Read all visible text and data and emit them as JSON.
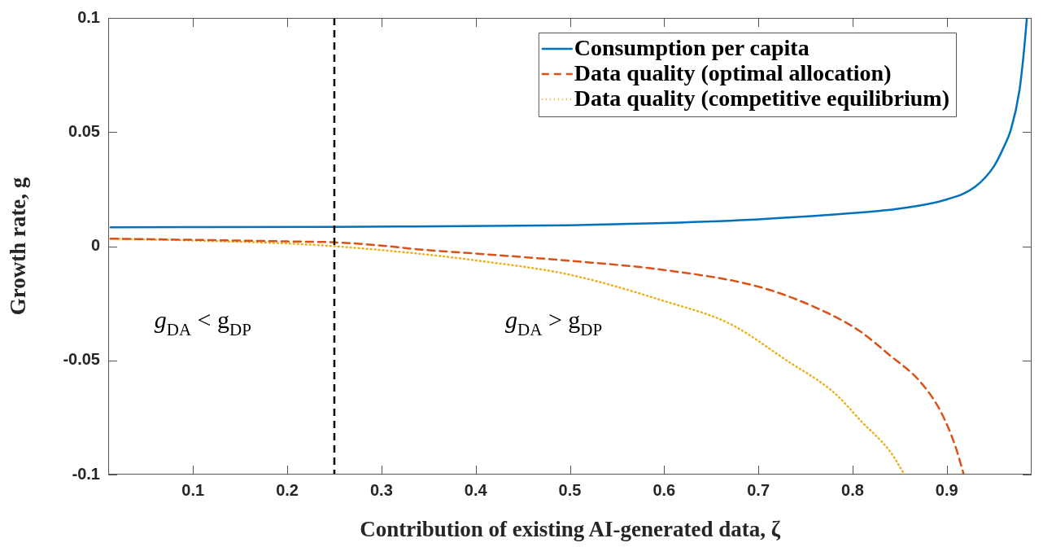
{
  "chart_data": {
    "type": "line",
    "xlabel": "Contribution of existing AI-generated data, ζ",
    "ylabel": "Growth rate, g",
    "xlim": [
      0.01,
      0.99
    ],
    "xticks": [
      0.1,
      0.2,
      0.3,
      0.4,
      0.5,
      0.6,
      0.7,
      0.8,
      0.9
    ],
    "ylim": [
      -0.1,
      0.1
    ],
    "yticks": [
      -0.1,
      -0.05,
      0,
      0.05,
      0.1
    ],
    "grid": false,
    "legend": "top right",
    "marker": "none",
    "series": [
      {
        "name": "Consumption per capita",
        "color": "#0072bd",
        "line_style": "solid",
        "x": [
          0.0125,
          0.25,
          0.5,
          0.6,
          0.7,
          0.8,
          0.85,
          0.9,
          0.93,
          0.95,
          0.96,
          0.968,
          0.977,
          0.982,
          0.985
        ],
        "values": [
          0.0083,
          0.0085,
          0.0092,
          0.0102,
          0.0118,
          0.0145,
          0.0165,
          0.0205,
          0.026,
          0.035,
          0.043,
          0.051,
          0.068,
          0.086,
          0.1
        ]
      },
      {
        "name": "Data quality (optimal allocation)",
        "color": "#d95319",
        "line_style": "dashed",
        "x": [
          0.0125,
          0.1,
          0.2,
          0.25,
          0.3,
          0.34,
          0.4,
          0.5,
          0.6,
          0.7,
          0.76,
          0.807,
          0.839,
          0.871,
          0.893,
          0.909,
          0.918
        ],
        "values": [
          0.0033,
          0.0028,
          0.0021,
          0.0017,
          0.0003,
          -0.0014,
          -0.0032,
          -0.0064,
          -0.0104,
          -0.0177,
          -0.0267,
          -0.037,
          -0.0476,
          -0.059,
          -0.072,
          -0.0875,
          -0.1
        ]
      },
      {
        "name": "Data quality (competitive equilibrium)",
        "color": "#edb120",
        "line_style": "dotted",
        "x": [
          0.0125,
          0.1,
          0.2,
          0.25,
          0.34,
          0.4,
          0.5,
          0.6,
          0.67,
          0.73,
          0.78,
          0.81,
          0.84,
          0.855
        ],
        "values": [
          0.0033,
          0.0025,
          0.0012,
          0.0,
          -0.0033,
          -0.0062,
          -0.0125,
          -0.024,
          -0.034,
          -0.05,
          -0.064,
          -0.077,
          -0.09,
          -0.1
        ]
      }
    ],
    "ref_lines": [
      {
        "axis": "x",
        "value": 0.25,
        "color": "#000000",
        "line_style": "dashed"
      }
    ],
    "annotations": [
      "g$_{DA}$ < g$_{DP}$",
      "g$_{DA}$ > g$_{DP}$"
    ]
  }
}
